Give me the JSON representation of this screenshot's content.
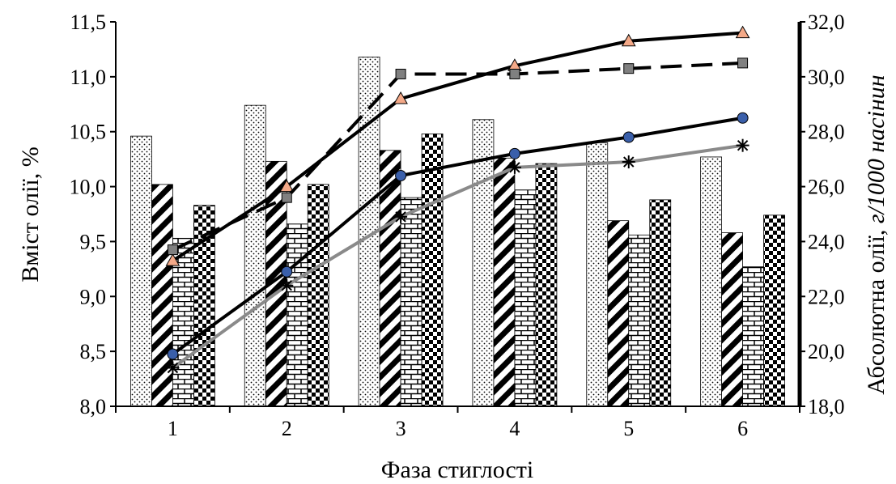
{
  "chart_data": {
    "type": "bar",
    "categories": [
      "1",
      "2",
      "3",
      "4",
      "5",
      "6"
    ],
    "xlabel": "Фаза стиглості",
    "ylabel": "Вміст олії, %",
    "y2label": {
      "upright": "Абсолютна олії, ",
      "italic": "г/1000 насінин"
    },
    "ylim": [
      8.0,
      11.5
    ],
    "yticks": [
      "8,0",
      "8,5",
      "9,0",
      "9,5",
      "10,0",
      "10,5",
      "11,0",
      "11,5"
    ],
    "y2lim": [
      18.0,
      32.0
    ],
    "y2ticks": [
      "18,0",
      "20,0",
      "22,0",
      "24,0",
      "26,0",
      "28,0",
      "30,0",
      "32,0"
    ],
    "grid": false,
    "legend": "none",
    "bar_series": [
      {
        "pattern": "dots",
        "values": [
          10.46,
          10.74,
          11.18,
          10.61,
          10.4,
          10.27
        ]
      },
      {
        "pattern": "diagonal",
        "values": [
          10.02,
          10.23,
          10.33,
          10.26,
          9.69,
          9.58
        ]
      },
      {
        "pattern": "brick",
        "values": [
          9.53,
          9.66,
          9.9,
          9.97,
          9.56,
          9.27
        ]
      },
      {
        "pattern": "checker",
        "values": [
          9.83,
          10.02,
          10.48,
          10.21,
          9.88,
          9.74
        ]
      }
    ],
    "line_series": [
      {
        "axis": "right",
        "marker": "triangle",
        "color": "#000000",
        "marker_fill": "#f4a988",
        "dashed": false,
        "values": [
          23.3,
          26.0,
          29.2,
          30.4,
          31.3,
          31.6
        ]
      },
      {
        "axis": "right",
        "marker": "square",
        "color": "#000000",
        "marker_fill": "#808080",
        "dashed": true,
        "values": [
          23.7,
          25.6,
          30.1,
          30.1,
          30.3,
          30.5
        ]
      },
      {
        "axis": "right",
        "marker": "circle",
        "color": "#000000",
        "marker_fill": "#3a5faa",
        "dashed": false,
        "values": [
          19.9,
          22.9,
          26.4,
          27.2,
          27.8,
          28.5
        ]
      },
      {
        "axis": "right",
        "marker": "star",
        "color": "#8a8a8a",
        "marker_fill": "#000000",
        "dashed": false,
        "values": [
          19.4,
          22.4,
          24.9,
          26.7,
          26.9,
          27.5
        ]
      }
    ]
  }
}
